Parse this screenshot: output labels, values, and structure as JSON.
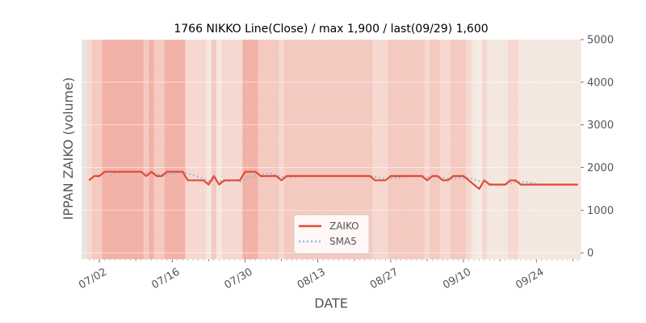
{
  "chart_data": {
    "type": "line",
    "title": "1766 NIKKO Line(Close) / max 1,900 / last(09/29) 1,600",
    "xlabel": "DATE",
    "ylabel": "IPPAN ZAIKO (volume)",
    "x_tick_labels": [
      "07/02",
      "07/16",
      "07/30",
      "08/13",
      "08/27",
      "09/10",
      "09/24"
    ],
    "y_ticks": [
      0,
      1000,
      2000,
      3000,
      4000,
      5000
    ],
    "y_tick_labels": [
      "0",
      "1000",
      "2000",
      "3000",
      "4000",
      "5000"
    ],
    "ylim": [
      -150,
      5000
    ],
    "y_axis_position": "right",
    "grid": true,
    "legend_position": "bottom-center",
    "background_bands": "per-day shading in salmon tones of varying intensity",
    "series": [
      {
        "name": "ZAIKO",
        "color": "#E24A33",
        "style": "solid",
        "values": [
          1700,
          1800,
          1800,
          1900,
          1900,
          1900,
          1900,
          1900,
          1900,
          1900,
          1900,
          1800,
          1900,
          1800,
          1800,
          1900,
          1900,
          1900,
          1900,
          1700,
          1700,
          1700,
          1700,
          1600,
          1800,
          1600,
          1700,
          1700,
          1700,
          1700,
          1900,
          1900,
          1900,
          1800,
          1800,
          1800,
          1800,
          1700,
          1800,
          1800,
          1800,
          1800,
          1800,
          1800,
          1800,
          1800,
          1800,
          1800,
          1800,
          1800,
          1800,
          1800,
          1800,
          1800,
          1800,
          1700,
          1700,
          1700,
          1800,
          1800,
          1800,
          1800,
          1800,
          1800,
          1800,
          1700,
          1800,
          1800,
          1700,
          1700,
          1800,
          1800,
          1800,
          1700,
          1600,
          1500,
          1700,
          1600,
          1600,
          1600,
          1600,
          1700,
          1700,
          1600,
          1600,
          1600,
          1600,
          1600,
          1600,
          1600,
          1600,
          1600,
          1600,
          1600,
          1600
        ]
      },
      {
        "name": "SMA5",
        "color": "#8EBAE5",
        "style": "dotted",
        "values": [
          null,
          null,
          null,
          null,
          1820,
          1860,
          1900,
          1900,
          1900,
          1900,
          1900,
          1880,
          1880,
          1860,
          1840,
          1840,
          1860,
          1860,
          1900,
          1860,
          1820,
          1780,
          1740,
          1680,
          1700,
          1680,
          1680,
          1680,
          1700,
          1660,
          1740,
          1780,
          1820,
          1840,
          1860,
          1860,
          1820,
          1780,
          1780,
          1780,
          1780,
          1800,
          1800,
          1800,
          1800,
          1800,
          1800,
          1800,
          1800,
          1800,
          1800,
          1800,
          1800,
          1800,
          1800,
          1780,
          1760,
          1740,
          1740,
          1760,
          1760,
          1780,
          1800,
          1800,
          1800,
          1780,
          1780,
          1780,
          1760,
          1740,
          1740,
          1760,
          1760,
          1760,
          1720,
          1680,
          1660,
          1620,
          1600,
          1600,
          1600,
          1640,
          1660,
          1660,
          1660,
          1640,
          1620,
          1600,
          1600,
          1600,
          1600,
          1600,
          1600,
          1600,
          1600
        ]
      }
    ]
  }
}
